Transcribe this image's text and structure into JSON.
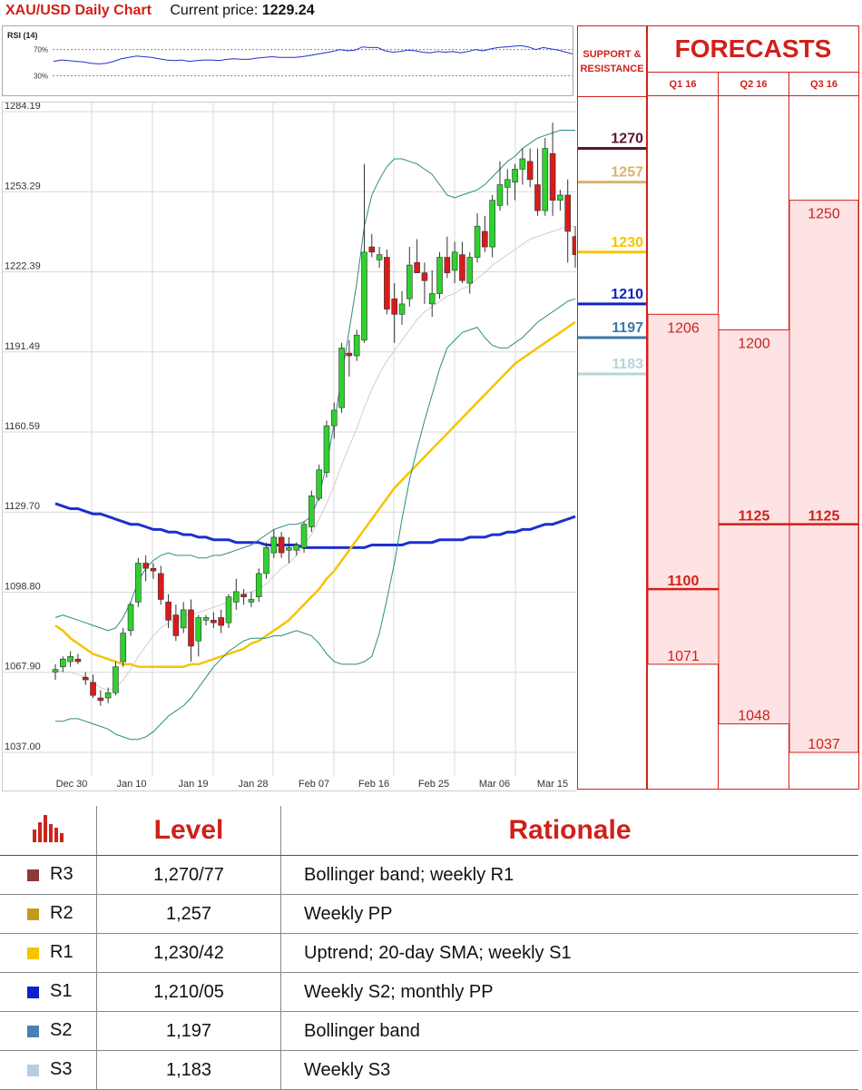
{
  "header": {
    "title": "XAU/USD Daily Chart",
    "price_label": "Current price:",
    "price_value": "1229.24"
  },
  "rsi": {
    "label": "RSI (14)",
    "ticks": [
      "70%",
      "30%"
    ]
  },
  "sr_header": [
    "SUPPORT &",
    "RESISTANCE"
  ],
  "forecast": {
    "title": "FORECASTS",
    "quarters": [
      "Q1 16",
      "Q2 16",
      "Q3 16"
    ],
    "q1": {
      "upper": "1206",
      "mid": "1100",
      "lower": "1071"
    },
    "q2": {
      "upper": "1200",
      "mid": "1125",
      "lower": "1048"
    },
    "q3": {
      "upper": "1250",
      "mid": "1125",
      "lower": "1037"
    }
  },
  "levels_table": {
    "headers": [
      "Level",
      "Rationale"
    ],
    "rows": [
      {
        "name": "R3",
        "level": "1,270/77",
        "rationale": "Bollinger band; weekly R1",
        "color": "#8b3a3a"
      },
      {
        "name": "R2",
        "level": "1,257",
        "rationale": "Weekly PP",
        "color": "#c49a1a"
      },
      {
        "name": "R1",
        "level": "1,230/42",
        "rationale": "Uptrend; 20-day SMA; weekly S1",
        "color": "#f5c400"
      },
      {
        "name": "S1",
        "level": "1,210/05",
        "rationale": "Weekly S2; monthly PP",
        "color": "#1020d0"
      },
      {
        "name": "S2",
        "level": "1,197",
        "rationale": "Bollinger band",
        "color": "#4a7fb8"
      },
      {
        "name": "S3",
        "level": "1,183",
        "rationale": "Weekly S3",
        "color": "#b8cce4"
      }
    ]
  },
  "chart_data": {
    "type": "candlestick",
    "title": "XAU/USD Daily Chart",
    "y_ticks": [
      "1284.19",
      "1253.29",
      "1222.39",
      "1191.49",
      "1160.59",
      "1129.70",
      "1098.80",
      "1067.90",
      "1037.00"
    ],
    "ylim": [
      1037.0,
      1284.19
    ],
    "x_ticks": [
      "Dec 30",
      "Jan 10",
      "Jan 19",
      "Jan 28",
      "Feb 07",
      "Feb 16",
      "Feb 25",
      "Mar 06",
      "Mar 15"
    ],
    "grid": true,
    "sr_levels": [
      {
        "label": "1270",
        "value": 1270,
        "color": "#5a1530"
      },
      {
        "label": "1257",
        "value": 1257,
        "color": "#d9b36a"
      },
      {
        "label": "1230",
        "value": 1230,
        "color": "#f5c400"
      },
      {
        "label": "1210",
        "value": 1210,
        "color": "#1020c8"
      },
      {
        "label": "1197",
        "value": 1197,
        "color": "#3d77a8"
      },
      {
        "label": "1183",
        "value": 1183,
        "color": "#b5d5d8"
      }
    ],
    "candles": [
      [
        1068,
        1071,
        1065,
        1069
      ],
      [
        1070,
        1074,
        1068,
        1073
      ],
      [
        1072,
        1076,
        1070,
        1074
      ],
      [
        1073,
        1075,
        1071,
        1072
      ],
      [
        1066,
        1068,
        1063,
        1065
      ],
      [
        1064,
        1067,
        1058,
        1059
      ],
      [
        1058,
        1061,
        1055,
        1057
      ],
      [
        1058,
        1062,
        1056,
        1060
      ],
      [
        1060,
        1072,
        1059,
        1070
      ],
      [
        1072,
        1085,
        1070,
        1083
      ],
      [
        1084,
        1095,
        1082,
        1094
      ],
      [
        1095,
        1112,
        1093,
        1110
      ],
      [
        1110,
        1113,
        1103,
        1108
      ],
      [
        1108,
        1110,
        1104,
        1107
      ],
      [
        1106,
        1109,
        1094,
        1096
      ],
      [
        1095,
        1098,
        1085,
        1088
      ],
      [
        1090,
        1094,
        1080,
        1082
      ],
      [
        1085,
        1095,
        1083,
        1092
      ],
      [
        1092,
        1096,
        1072,
        1078
      ],
      [
        1080,
        1090,
        1074,
        1089
      ],
      [
        1088,
        1090,
        1086,
        1089
      ],
      [
        1088,
        1091,
        1085,
        1087
      ],
      [
        1089,
        1092,
        1083,
        1086
      ],
      [
        1087,
        1098,
        1085,
        1097
      ],
      [
        1095,
        1104,
        1092,
        1099
      ],
      [
        1098,
        1100,
        1094,
        1097
      ],
      [
        1095,
        1099,
        1093,
        1096
      ],
      [
        1097,
        1108,
        1095,
        1106
      ],
      [
        1106,
        1118,
        1104,
        1116
      ],
      [
        1114,
        1123,
        1112,
        1120
      ],
      [
        1120,
        1122,
        1112,
        1114
      ],
      [
        1115,
        1120,
        1110,
        1116
      ],
      [
        1115,
        1118,
        1113,
        1117
      ],
      [
        1116,
        1126,
        1114,
        1125
      ],
      [
        1124,
        1138,
        1122,
        1136
      ],
      [
        1135,
        1148,
        1134,
        1146
      ],
      [
        1145,
        1165,
        1143,
        1163
      ],
      [
        1163,
        1172,
        1158,
        1169
      ],
      [
        1170,
        1195,
        1168,
        1193
      ],
      [
        1191,
        1196,
        1182,
        1190
      ],
      [
        1190,
        1200,
        1188,
        1198
      ],
      [
        1196,
        1264,
        1195,
        1230
      ],
      [
        1232,
        1237,
        1228,
        1230
      ],
      [
        1227,
        1232,
        1224,
        1229
      ],
      [
        1228,
        1231,
        1206,
        1208
      ],
      [
        1212,
        1218,
        1195,
        1206
      ],
      [
        1206,
        1215,
        1202,
        1210
      ],
      [
        1212,
        1232,
        1209,
        1225
      ],
      [
        1226,
        1235,
        1222,
        1222
      ],
      [
        1222,
        1226,
        1210,
        1219
      ],
      [
        1210,
        1223,
        1205,
        1214
      ],
      [
        1214,
        1230,
        1212,
        1228
      ],
      [
        1228,
        1236,
        1220,
        1222
      ],
      [
        1223,
        1234,
        1218,
        1230
      ],
      [
        1229,
        1234,
        1218,
        1219
      ],
      [
        1218,
        1230,
        1214,
        1228
      ],
      [
        1228,
        1245,
        1226,
        1240
      ],
      [
        1238,
        1244,
        1230,
        1232
      ],
      [
        1232,
        1252,
        1228,
        1250
      ],
      [
        1248,
        1265,
        1246,
        1256
      ],
      [
        1255,
        1262,
        1248,
        1258
      ],
      [
        1257,
        1264,
        1250,
        1262
      ],
      [
        1262,
        1270,
        1256,
        1266
      ],
      [
        1265,
        1270,
        1255,
        1258
      ],
      [
        1256,
        1270,
        1244,
        1246
      ],
      [
        1246,
        1274,
        1244,
        1270
      ],
      [
        1268,
        1280,
        1244,
        1250
      ],
      [
        1250,
        1254,
        1246,
        1252
      ],
      [
        1252,
        1258,
        1226,
        1238
      ],
      [
        1236,
        1240,
        1224,
        1229
      ]
    ],
    "sma20": [
      1069,
      1068,
      1068,
      1067,
      1066,
      1064,
      1062,
      1061,
      1062,
      1065,
      1069,
      1074,
      1078,
      1082,
      1085,
      1087,
      1088,
      1090,
      1090,
      1091,
      1092,
      1093,
      1094,
      1095,
      1097,
      1098,
      1099,
      1100,
      1102,
      1105,
      1108,
      1110,
      1113,
      1117,
      1121,
      1127,
      1133,
      1140,
      1148,
      1155,
      1162,
      1170,
      1177,
      1183,
      1188,
      1192,
      1196,
      1200,
      1204,
      1207,
      1209,
      1211,
      1213,
      1214,
      1216,
      1217,
      1220,
      1222,
      1225,
      1227,
      1229,
      1231,
      1233,
      1235,
      1236,
      1237,
      1238,
      1239,
      1240,
      1240
    ],
    "bb_upper": [
      1089,
      1090,
      1089,
      1088,
      1087,
      1086,
      1085,
      1084,
      1085,
      1089,
      1095,
      1103,
      1108,
      1111,
      1113,
      1114,
      1113,
      1113,
      1113,
      1112,
      1112,
      1113,
      1113,
      1114,
      1115,
      1116,
      1117,
      1119,
      1121,
      1123,
      1124,
      1125,
      1125,
      1126,
      1128,
      1136,
      1148,
      1164,
      1182,
      1200,
      1218,
      1240,
      1252,
      1258,
      1263,
      1266,
      1266,
      1265,
      1264,
      1262,
      1260,
      1256,
      1252,
      1251,
      1252,
      1253,
      1254,
      1256,
      1259,
      1262,
      1265,
      1267,
      1270,
      1272,
      1274,
      1275,
      1276,
      1277,
      1277,
      1277
    ],
    "bb_lower": [
      1049,
      1049,
      1050,
      1050,
      1049,
      1048,
      1047,
      1046,
      1044,
      1043,
      1042,
      1042,
      1043,
      1045,
      1048,
      1051,
      1053,
      1055,
      1058,
      1062,
      1066,
      1070,
      1073,
      1076,
      1078,
      1080,
      1081,
      1081,
      1081,
      1082,
      1082,
      1083,
      1084,
      1083,
      1082,
      1079,
      1075,
      1072,
      1071,
      1071,
      1071,
      1072,
      1074,
      1083,
      1096,
      1110,
      1127,
      1142,
      1154,
      1165,
      1175,
      1185,
      1193,
      1196,
      1199,
      1200,
      1201,
      1197,
      1194,
      1193,
      1193,
      1195,
      1197,
      1200,
      1203,
      1205,
      1207,
      1209,
      1211,
      1212
    ],
    "sma55": [
      1086,
      1084,
      1081,
      1079,
      1077,
      1075,
      1074,
      1073,
      1072,
      1071,
      1071,
      1070,
      1070,
      1070,
      1070,
      1070,
      1070,
      1070,
      1071,
      1071,
      1072,
      1073,
      1074,
      1075,
      1076,
      1077,
      1079,
      1080,
      1082,
      1084,
      1086,
      1088,
      1091,
      1094,
      1097,
      1100,
      1104,
      1107,
      1111,
      1115,
      1119,
      1123,
      1127,
      1131,
      1135,
      1139,
      1142,
      1145,
      1148,
      1151,
      1154,
      1157,
      1160,
      1163,
      1166,
      1169,
      1172,
      1175,
      1178,
      1181,
      1184,
      1187,
      1189,
      1191,
      1193,
      1195,
      1197,
      1199,
      1201,
      1203
    ],
    "sma200": [
      1133,
      1132,
      1131,
      1131,
      1130,
      1129,
      1129,
      1128,
      1127,
      1126,
      1125,
      1125,
      1124,
      1123,
      1123,
      1122,
      1122,
      1121,
      1121,
      1120,
      1120,
      1119,
      1119,
      1119,
      1118,
      1118,
      1118,
      1118,
      1117,
      1117,
      1117,
      1117,
      1117,
      1116,
      1116,
      1116,
      1116,
      1116,
      1116,
      1116,
      1116,
      1116,
      1117,
      1117,
      1117,
      1117,
      1117,
      1118,
      1118,
      1118,
      1118,
      1119,
      1119,
      1119,
      1119,
      1120,
      1120,
      1120,
      1121,
      1121,
      1122,
      1122,
      1123,
      1123,
      1124,
      1125,
      1125,
      1126,
      1127,
      1128
    ],
    "rsi_values": [
      52,
      54,
      53,
      52,
      51,
      49,
      48,
      49,
      52,
      56,
      58,
      60,
      59,
      58,
      56,
      54,
      53,
      54,
      52,
      53,
      54,
      54,
      53,
      55,
      56,
      55,
      55,
      57,
      58,
      59,
      58,
      58,
      58,
      59,
      61,
      63,
      65,
      67,
      70,
      68,
      69,
      74,
      73,
      73,
      68,
      66,
      67,
      69,
      68,
      66,
      65,
      67,
      66,
      67,
      65,
      67,
      70,
      68,
      71,
      73,
      74,
      75,
      76,
      74,
      70,
      73,
      71,
      69,
      66,
      63
    ]
  }
}
